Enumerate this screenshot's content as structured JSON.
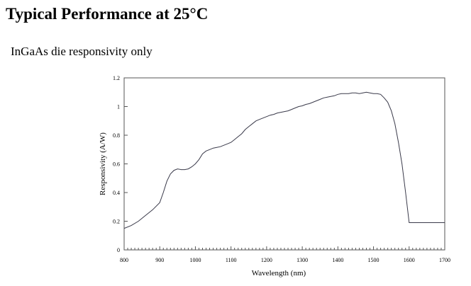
{
  "page": {
    "title": "Typical Performance at 25°C",
    "subtitle": "InGaAs die responsivity only"
  },
  "chart_data": {
    "type": "line",
    "title": "",
    "xlabel": "Wavelength (nm)",
    "ylabel": "Responsivity (A/W)",
    "xlim": [
      800,
      1700
    ],
    "ylim": [
      0,
      1.2
    ],
    "xticks": [
      800,
      900,
      1000,
      1100,
      1200,
      1300,
      1400,
      1500,
      1600,
      1700
    ],
    "xtick_labels": [
      "800",
      "900",
      "1000",
      "1100",
      "1200",
      "1300",
      "1400",
      "1500",
      "1600",
      "1700"
    ],
    "yticks": [
      0,
      0.2,
      0.4,
      0.6,
      0.8,
      1,
      1.2
    ],
    "ytick_labels": [
      "0",
      "0.2",
      "0.4",
      "0.6",
      "0.8",
      "1",
      "1.2"
    ],
    "grid": false,
    "legend": "none",
    "line_color": "#3a3a4a",
    "series": [
      {
        "x": [
          800,
          820,
          840,
          860,
          880,
          900,
          910,
          920,
          930,
          940,
          950,
          960,
          970,
          980,
          990,
          1000,
          1010,
          1020,
          1030,
          1040,
          1050,
          1060,
          1070,
          1080,
          1090,
          1100,
          1110,
          1120,
          1130,
          1140,
          1150,
          1160,
          1170,
          1180,
          1190,
          1200,
          1210,
          1220,
          1230,
          1240,
          1250,
          1260,
          1270,
          1280,
          1290,
          1300,
          1310,
          1320,
          1330,
          1340,
          1350,
          1360,
          1370,
          1380,
          1390,
          1400,
          1410,
          1420,
          1430,
          1440,
          1450,
          1460,
          1470,
          1480,
          1490,
          1500,
          1510,
          1520,
          1530,
          1540,
          1550,
          1560,
          1570,
          1580,
          1590,
          1600,
          1610,
          1620,
          1630,
          1640,
          1650,
          1660,
          1670,
          1680,
          1690,
          1700
        ],
        "y": [
          0.15,
          0.17,
          0.2,
          0.24,
          0.28,
          0.33,
          0.4,
          0.48,
          0.53,
          0.555,
          0.565,
          0.56,
          0.56,
          0.565,
          0.58,
          0.6,
          0.63,
          0.67,
          0.69,
          0.7,
          0.71,
          0.715,
          0.72,
          0.73,
          0.74,
          0.75,
          0.77,
          0.79,
          0.81,
          0.84,
          0.86,
          0.88,
          0.9,
          0.91,
          0.92,
          0.93,
          0.94,
          0.945,
          0.955,
          0.96,
          0.965,
          0.97,
          0.98,
          0.99,
          1,
          1.005,
          1.015,
          1.02,
          1.03,
          1.04,
          1.05,
          1.06,
          1.065,
          1.07,
          1.075,
          1.085,
          1.09,
          1.09,
          1.09,
          1.095,
          1.095,
          1.09,
          1.095,
          1.1,
          1.095,
          1.09,
          1.09,
          1.085,
          1.06,
          1.03,
          0.97,
          0.88,
          0.75,
          0.6,
          0.4,
          0.19,
          0.19,
          0.19,
          0.19,
          0.19,
          0.19,
          0.19,
          0.19,
          0.19,
          0.19,
          0.19
        ]
      }
    ]
  }
}
